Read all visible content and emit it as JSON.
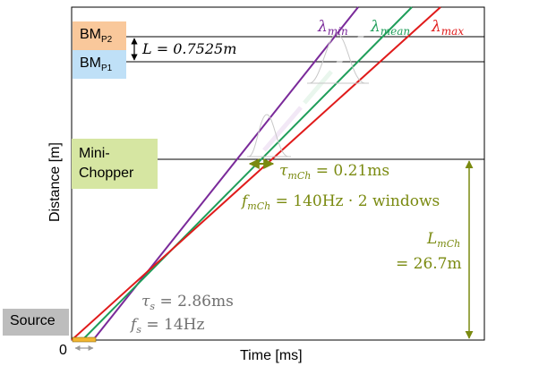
{
  "labels": {
    "bm_p2": "BM",
    "bm_p2_sub": "P2",
    "bm_p1": "BM",
    "bm_p1_sub": "P1",
    "mini_chopper": "Mini-\nChopper",
    "source": "Source",
    "origin": "0",
    "x_axis": "Time [ms]",
    "y_axis": "Distance [m]"
  },
  "annotations": {
    "baseline_distance": "L = 0.7525m",
    "lambda_min": "λ",
    "lambda_min_sub": "min",
    "lambda_mean": "λ",
    "lambda_mean_sub": "mean",
    "lambda_max": "λ",
    "lambda_max_sub": "max",
    "tau_mch_sym": "τ",
    "tau_mch_sub": "mCh",
    "tau_mch_val": " = 0.21ms",
    "f_mch_sym": "f",
    "f_mch_sub": "mCh",
    "f_mch_val": " = 140Hz · 2 windows",
    "l_mch_sym": "L",
    "l_mch_sub": "mCh",
    "l_mch_val": "= 26.7m",
    "tau_s_sym": "τ",
    "tau_s_sub": "s",
    "tau_s_val": " = 2.86ms",
    "f_s_sym": "f",
    "f_s_sub": "s",
    "f_s_val": " = 14Hz"
  },
  "colors": {
    "lambda_min": "#7a2a9a",
    "lambda_mean": "#1f9e5a",
    "lambda_max": "#e01b1b",
    "olive": "#7a8a10",
    "gray_text": "#707070",
    "bm_p2_fill": "#f9c89b",
    "bm_p1_fill": "#bfe0f7",
    "chopper_fill": "#d6e6a2",
    "source_fill": "#bdbdbd",
    "source_pulse": "#f2b630"
  }
}
